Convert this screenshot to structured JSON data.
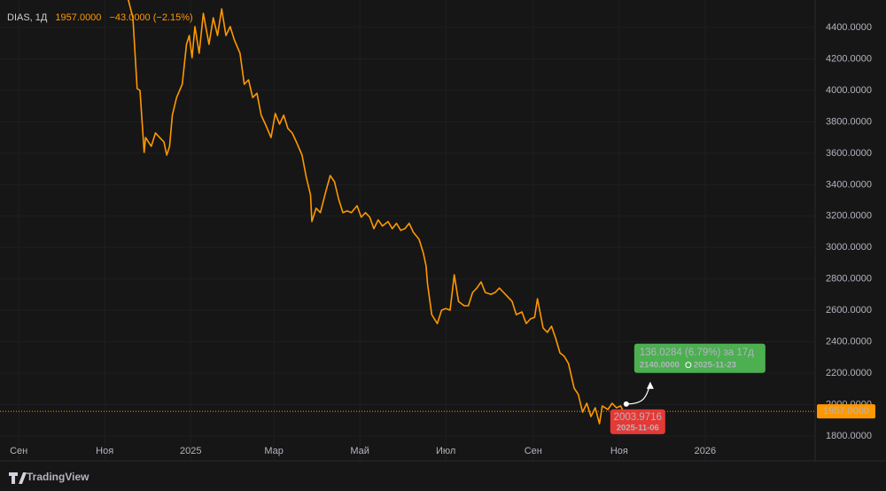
{
  "chart_data": {
    "type": "line",
    "xlim": [
      "2024-08-25",
      "2026-03-20"
    ],
    "ylim": [
      1755,
      4530
    ],
    "grid": true,
    "xticks": [
      {
        "value": "2024-09-01",
        "label": "Сен"
      },
      {
        "value": "2024-11-01",
        "label": "Ноя"
      },
      {
        "value": "2025-01-01",
        "label": "2025"
      },
      {
        "value": "2025-03-01",
        "label": "Мар"
      },
      {
        "value": "2025-05-01",
        "label": "Май"
      },
      {
        "value": "2025-07-01",
        "label": "Июл"
      },
      {
        "value": "2025-09-01",
        "label": "Сен"
      },
      {
        "value": "2025-11-01",
        "label": "Ноя"
      },
      {
        "value": "2026-01-01",
        "label": "2026"
      }
    ],
    "yticks": [
      {
        "value": 1800,
        "label": "1800.0000"
      },
      {
        "value": 2000,
        "label": "2000.0000"
      },
      {
        "value": 2200,
        "label": "2200.0000"
      },
      {
        "value": 2400,
        "label": "2400.0000"
      },
      {
        "value": 2600,
        "label": "2600.0000"
      },
      {
        "value": 2800,
        "label": "2800.0000"
      },
      {
        "value": 3000,
        "label": "3000.0000"
      },
      {
        "value": 3200,
        "label": "3200.0000"
      },
      {
        "value": 3400,
        "label": "3400.0000"
      },
      {
        "value": 3600,
        "label": "3600.0000"
      },
      {
        "value": 3800,
        "label": "3800.0000"
      },
      {
        "value": 4000,
        "label": "4000.0000"
      },
      {
        "value": 4200,
        "label": "4200.0000"
      },
      {
        "value": 4400,
        "label": "4400.0000"
      }
    ],
    "series": [
      {
        "name": "DIAS, 1Д",
        "color": "#ff9800",
        "last": {
          "value": 1957,
          "label": "1957.0000"
        },
        "change": {
          "value": -43,
          "percent": -2.15,
          "label": "−43.0000 (−2.15%)"
        },
        "x": [
          "2024-11-17",
          "2024-11-21",
          "2024-11-24",
          "2024-11-26",
          "2024-11-29",
          "2024-11-30",
          "2024-12-04",
          "2024-12-07",
          "2024-12-10",
          "2024-12-13",
          "2024-12-15",
          "2024-12-17",
          "2024-12-19",
          "2024-12-22",
          "2024-12-26",
          "2024-12-29",
          "2024-12-31",
          "2025-01-02",
          "2025-01-04",
          "2025-01-07",
          "2025-01-10",
          "2025-01-14",
          "2025-01-17",
          "2025-01-20",
          "2025-01-23",
          "2025-01-26",
          "2025-01-29",
          "2025-02-01",
          "2025-02-05",
          "2025-02-08",
          "2025-02-11",
          "2025-02-14",
          "2025-02-17",
          "2025-02-20",
          "2025-02-23",
          "2025-02-27",
          "2025-03-02",
          "2025-03-05",
          "2025-03-08",
          "2025-03-11",
          "2025-03-14",
          "2025-03-17",
          "2025-03-21",
          "2025-03-24",
          "2025-03-27",
          "2025-03-28",
          "2025-03-31",
          "2025-04-03",
          "2025-04-07",
          "2025-04-10",
          "2025-04-13",
          "2025-04-16",
          "2025-04-19",
          "2025-04-22",
          "2025-04-25",
          "2025-04-29",
          "2025-05-02",
          "2025-05-05",
          "2025-05-08",
          "2025-05-11",
          "2025-05-14",
          "2025-05-17",
          "2025-05-21",
          "2025-05-24",
          "2025-05-27",
          "2025-05-30",
          "2025-06-02",
          "2025-06-05",
          "2025-06-08",
          "2025-06-12",
          "2025-06-15",
          "2025-06-17",
          "2025-06-18",
          "2025-06-21",
          "2025-06-25",
          "2025-06-28",
          "2025-07-01",
          "2025-07-04",
          "2025-07-07",
          "2025-07-10",
          "2025-07-14",
          "2025-07-17",
          "2025-07-20",
          "2025-07-23",
          "2025-07-26",
          "2025-07-29",
          "2025-08-02",
          "2025-08-05",
          "2025-08-08",
          "2025-08-11",
          "2025-08-14",
          "2025-08-17",
          "2025-08-20",
          "2025-08-24",
          "2025-08-27",
          "2025-08-30",
          "2025-09-02",
          "2025-09-04",
          "2025-09-08",
          "2025-09-11",
          "2025-09-14",
          "2025-09-17",
          "2025-09-20",
          "2025-09-23",
          "2025-09-26",
          "2025-09-30",
          "2025-10-03",
          "2025-10-06",
          "2025-10-09",
          "2025-10-12",
          "2025-10-15",
          "2025-10-18",
          "2025-10-20",
          "2025-10-24",
          "2025-10-27",
          "2025-10-30",
          "2025-11-02",
          "2025-11-04"
        ],
        "values": [
          4603,
          4462,
          4011,
          4000,
          3605,
          3700,
          3644,
          3729,
          3700,
          3672,
          3588,
          3644,
          3842,
          3954,
          4039,
          4293,
          4349,
          4208,
          4406,
          4236,
          4490,
          4293,
          4462,
          4349,
          4518,
          4349,
          4406,
          4321,
          4236,
          4039,
          4067,
          3954,
          3982,
          3842,
          3785,
          3700,
          3853,
          3785,
          3842,
          3757,
          3729,
          3672,
          3588,
          3447,
          3334,
          3165,
          3250,
          3222,
          3362,
          3458,
          3419,
          3306,
          3222,
          3233,
          3222,
          3266,
          3193,
          3222,
          3193,
          3120,
          3176,
          3137,
          3165,
          3120,
          3154,
          3109,
          3120,
          3154,
          3097,
          3052,
          2967,
          2883,
          2770,
          2573,
          2516,
          2601,
          2612,
          2601,
          2826,
          2657,
          2629,
          2629,
          2714,
          2742,
          2781,
          2714,
          2702,
          2714,
          2742,
          2714,
          2685,
          2657,
          2573,
          2590,
          2516,
          2545,
          2556,
          2674,
          2488,
          2460,
          2499,
          2420,
          2330,
          2308,
          2262,
          2105,
          2065,
          1952,
          2009,
          1924,
          1980,
          1879,
          1992,
          1969,
          2009,
          1980,
          1992,
          1957
        ]
      }
    ],
    "measure": {
      "from": {
        "x": "2025-11-06",
        "y": 2003.9716,
        "label": "2003.9716"
      },
      "to": {
        "x": "2025-11-23",
        "y": 2140,
        "label": "2140.0000"
      },
      "change": 136.0284,
      "percent": 6.79,
      "days": 17,
      "label": "136.0284 (6.79%) за 17д"
    }
  },
  "footer": {
    "brand": "TradingView"
  }
}
